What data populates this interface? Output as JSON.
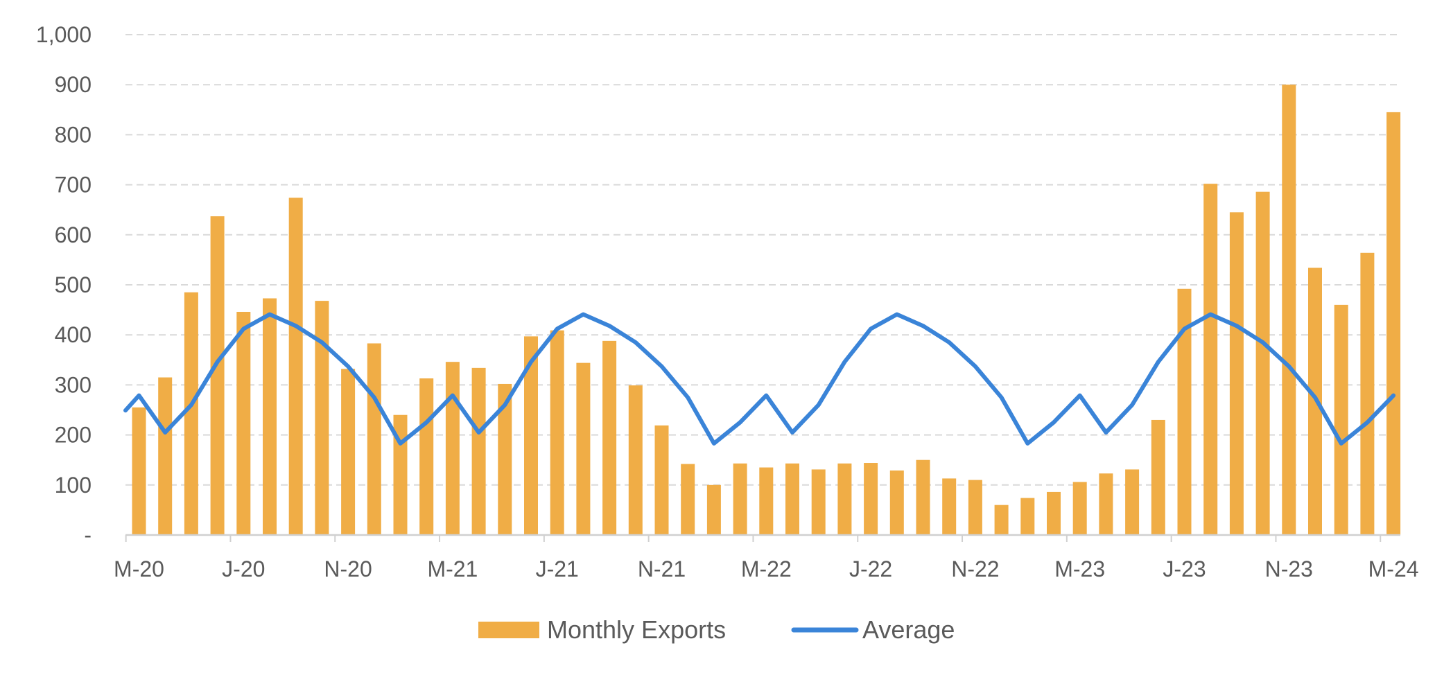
{
  "chart_data": {
    "type": "bar",
    "title": "",
    "xlabel": "",
    "ylabel": "",
    "ylim": [
      0,
      1000
    ],
    "y_ticks": [
      {
        "value": 0,
        "label": "-"
      },
      {
        "value": 100,
        "label": "100"
      },
      {
        "value": 200,
        "label": "200"
      },
      {
        "value": 300,
        "label": "300"
      },
      {
        "value": 400,
        "label": "400"
      },
      {
        "value": 500,
        "label": "500"
      },
      {
        "value": 600,
        "label": "600"
      },
      {
        "value": 700,
        "label": "700"
      },
      {
        "value": 800,
        "label": "800"
      },
      {
        "value": 900,
        "label": "900"
      },
      {
        "value": 1000,
        "label": "1,000"
      }
    ],
    "grid": true,
    "legend_position": "bottom",
    "colors": {
      "bars": "#F0AD46",
      "line": "#3A84D8",
      "grid": "#d9d9d9",
      "axis": "#d0d0d0",
      "text": "#5a5a5a"
    },
    "x_tick_labels": [
      {
        "index": 0,
        "label": "M-20"
      },
      {
        "index": 4,
        "label": "J-20"
      },
      {
        "index": 8,
        "label": "N-20"
      },
      {
        "index": 12,
        "label": "M-21"
      },
      {
        "index": 16,
        "label": "J-21"
      },
      {
        "index": 20,
        "label": "N-21"
      },
      {
        "index": 24,
        "label": "M-22"
      },
      {
        "index": 28,
        "label": "J-22"
      },
      {
        "index": 32,
        "label": "N-22"
      },
      {
        "index": 36,
        "label": "M-23"
      },
      {
        "index": 40,
        "label": "J-23"
      },
      {
        "index": 44,
        "label": "N-23"
      },
      {
        "index": 48,
        "label": "M-24"
      }
    ],
    "series": [
      {
        "name": "Monthly Exports",
        "type": "bar",
        "values": [
          255,
          315,
          485,
          637,
          446,
          473,
          674,
          468,
          332,
          383,
          240,
          313,
          346,
          334,
          302,
          397,
          409,
          344,
          388,
          299,
          219,
          142,
          100,
          143,
          135,
          143,
          131,
          143,
          144,
          129,
          150,
          113,
          110,
          60,
          74,
          86,
          106,
          123,
          131,
          230,
          492,
          702,
          645,
          686,
          900,
          534,
          460,
          564,
          845
        ]
      },
      {
        "name": "Average",
        "type": "line",
        "values": [
          279,
          205,
          260,
          346,
          412,
          441,
          418,
          385,
          337,
          275,
          183,
          225,
          279,
          205,
          260,
          346,
          412,
          441,
          418,
          385,
          337,
          275,
          183,
          225,
          279,
          205,
          260,
          346,
          412,
          441,
          418,
          385,
          337,
          275,
          183,
          225,
          279,
          205,
          260,
          346,
          412,
          441,
          418,
          385,
          337,
          275,
          183,
          225,
          279
        ]
      }
    ]
  }
}
